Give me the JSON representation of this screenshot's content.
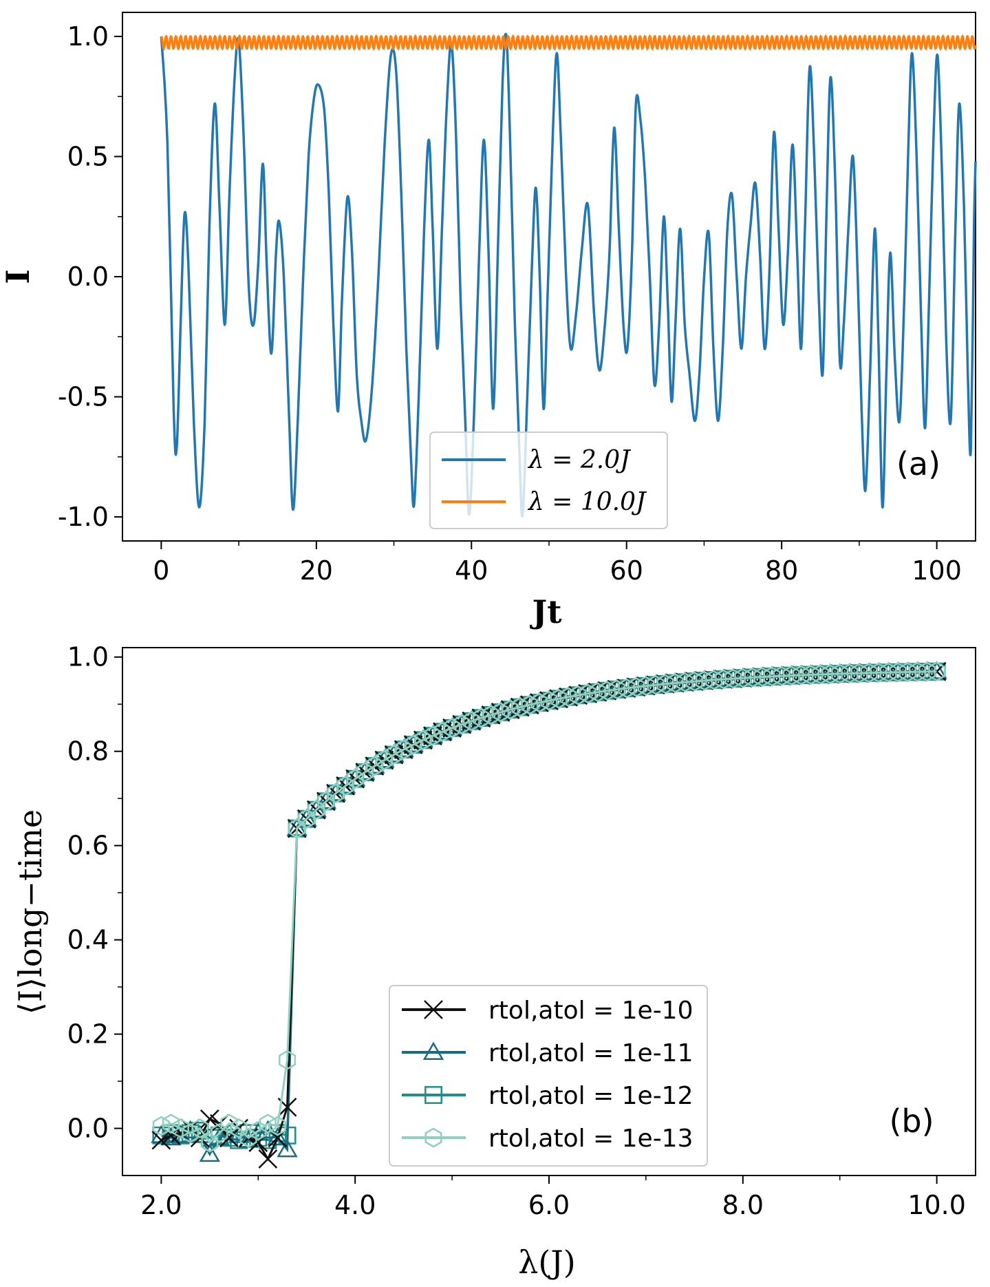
{
  "chart_data": [
    {
      "panel_label": "(a)",
      "type": "line",
      "xlabel": "Jt",
      "ylabel": "I",
      "xlim": [
        -5,
        105
      ],
      "ylim": [
        -1.1,
        1.1
      ],
      "xticks": [
        0,
        20,
        40,
        60,
        80,
        100
      ],
      "xtick_labels": [
        "0",
        "20",
        "40",
        "60",
        "80",
        "100"
      ],
      "yticks": [
        1.0,
        0.5,
        0.0,
        -0.5,
        -1.0
      ],
      "ytick_labels": [
        "1.0",
        "0.5",
        "0.0",
        "-0.5",
        "-1.0"
      ],
      "legend_position": "lower-center",
      "series": [
        {
          "name": "λ = 2.0J",
          "color": "#1f77b4",
          "points": [
            [
              0,
              1.0
            ],
            [
              0.8,
              0.55
            ],
            [
              1.6,
              -0.55
            ],
            [
              2.0,
              -0.71
            ],
            [
              2.5,
              -0.2
            ],
            [
              3.0,
              0.26
            ],
            [
              3.5,
              0.05
            ],
            [
              4.2,
              -0.6
            ],
            [
              4.9,
              -0.96
            ],
            [
              5.6,
              -0.6
            ],
            [
              6.2,
              0.2
            ],
            [
              6.9,
              0.72
            ],
            [
              7.5,
              0.3
            ],
            [
              8.2,
              -0.2
            ],
            [
              8.8,
              0.35
            ],
            [
              9.5,
              0.85
            ],
            [
              10.0,
              0.98
            ],
            [
              10.6,
              0.6
            ],
            [
              11.3,
              -0.05
            ],
            [
              11.9,
              -0.2
            ],
            [
              12.5,
              0.05
            ],
            [
              13.1,
              0.47
            ],
            [
              13.6,
              0.05
            ],
            [
              14.2,
              -0.32
            ],
            [
              14.8,
              0.1
            ],
            [
              15.2,
              0.23
            ],
            [
              15.8,
              0.0
            ],
            [
              16.5,
              -0.6
            ],
            [
              17.0,
              -0.97
            ],
            [
              17.6,
              -0.6
            ],
            [
              18.3,
              0.0
            ],
            [
              19.0,
              0.5
            ],
            [
              19.6,
              0.72
            ],
            [
              20.2,
              0.8
            ],
            [
              21.0,
              0.7
            ],
            [
              21.6,
              0.35
            ],
            [
              22.2,
              -0.2
            ],
            [
              22.8,
              -0.56
            ],
            [
              23.3,
              -0.1
            ],
            [
              24.0,
              0.33
            ],
            [
              24.6,
              0.1
            ],
            [
              25.2,
              -0.4
            ],
            [
              25.8,
              -0.6
            ],
            [
              26.4,
              -0.68
            ],
            [
              27.2,
              -0.45
            ],
            [
              28.0,
              0.0
            ],
            [
              28.8,
              0.55
            ],
            [
              29.6,
              0.92
            ],
            [
              30.3,
              0.85
            ],
            [
              31.0,
              0.3
            ],
            [
              31.6,
              -0.3
            ],
            [
              32.2,
              -0.75
            ],
            [
              32.6,
              -0.95
            ],
            [
              33.2,
              -0.5
            ],
            [
              33.9,
              0.2
            ],
            [
              34.5,
              0.57
            ],
            [
              35.0,
              0.2
            ],
            [
              35.6,
              -0.3
            ],
            [
              36.2,
              0.2
            ],
            [
              36.8,
              0.7
            ],
            [
              37.4,
              0.97
            ],
            [
              38.0,
              0.6
            ],
            [
              38.6,
              -0.1
            ],
            [
              39.2,
              -0.6
            ],
            [
              39.7,
              -0.99
            ],
            [
              40.3,
              -0.6
            ],
            [
              41.0,
              0.1
            ],
            [
              41.6,
              0.57
            ],
            [
              42.2,
              0.1
            ],
            [
              42.8,
              -0.55
            ],
            [
              43.4,
              0.1
            ],
            [
              44.0,
              0.8
            ],
            [
              44.5,
              1.0
            ],
            [
              45.0,
              0.55
            ],
            [
              45.6,
              -0.2
            ],
            [
              46.2,
              -0.75
            ],
            [
              46.6,
              -0.99
            ],
            [
              47.2,
              -0.5
            ],
            [
              47.8,
              0.05
            ],
            [
              48.3,
              0.37
            ],
            [
              48.8,
              0.0
            ],
            [
              49.3,
              -0.55
            ],
            [
              49.8,
              -0.1
            ],
            [
              50.5,
              0.6
            ],
            [
              51.0,
              0.93
            ],
            [
              51.5,
              0.6
            ],
            [
              52.2,
              0.0
            ],
            [
              52.8,
              -0.3
            ],
            [
              53.5,
              -0.15
            ],
            [
              54.2,
              0.1
            ],
            [
              55.0,
              0.3
            ],
            [
              55.8,
              -0.15
            ],
            [
              56.5,
              -0.39
            ],
            [
              57.2,
              -0.2
            ],
            [
              57.8,
              0.1
            ],
            [
              58.4,
              0.62
            ],
            [
              59.0,
              0.2
            ],
            [
              59.6,
              -0.2
            ],
            [
              60.1,
              -0.3
            ],
            [
              60.7,
              0.1
            ],
            [
              61.2,
              0.72
            ],
            [
              61.8,
              0.65
            ],
            [
              62.4,
              0.4
            ],
            [
              63.0,
              0.0
            ],
            [
              63.6,
              -0.45
            ],
            [
              64.2,
              -0.2
            ],
            [
              64.8,
              0.25
            ],
            [
              65.3,
              -0.1
            ],
            [
              65.8,
              -0.52
            ],
            [
              66.3,
              -0.2
            ],
            [
              66.9,
              0.2
            ],
            [
              67.5,
              -0.2
            ],
            [
              68.1,
              -0.4
            ],
            [
              68.8,
              -0.6
            ],
            [
              69.4,
              -0.4
            ],
            [
              70.0,
              0.0
            ],
            [
              70.6,
              0.18
            ],
            [
              71.2,
              -0.3
            ],
            [
              71.8,
              -0.6
            ],
            [
              72.4,
              -0.3
            ],
            [
              73.0,
              0.2
            ],
            [
              73.6,
              0.34
            ],
            [
              74.2,
              0.0
            ],
            [
              74.8,
              -0.3
            ],
            [
              75.4,
              0.0
            ],
            [
              76.0,
              0.22
            ],
            [
              76.6,
              0.39
            ],
            [
              77.2,
              0.1
            ],
            [
              77.8,
              -0.3
            ],
            [
              78.4,
              0.0
            ],
            [
              79.0,
              0.6
            ],
            [
              79.6,
              0.2
            ],
            [
              80.2,
              -0.2
            ],
            [
              80.8,
              0.1
            ],
            [
              81.4,
              0.55
            ],
            [
              82.0,
              0.1
            ],
            [
              82.5,
              -0.3
            ],
            [
              83.0,
              0.2
            ],
            [
              83.6,
              0.87
            ],
            [
              84.2,
              0.5
            ],
            [
              84.8,
              -0.1
            ],
            [
              85.3,
              -0.4
            ],
            [
              85.8,
              0.3
            ],
            [
              86.3,
              0.83
            ],
            [
              86.9,
              0.4
            ],
            [
              87.5,
              -0.35
            ],
            [
              88.0,
              -0.2
            ],
            [
              88.6,
              0.2
            ],
            [
              89.2,
              0.5
            ],
            [
              89.8,
              0.0
            ],
            [
              90.3,
              -0.55
            ],
            [
              90.8,
              -0.89
            ],
            [
              91.4,
              -0.4
            ],
            [
              92.0,
              0.2
            ],
            [
              92.5,
              -0.3
            ],
            [
              93.0,
              -0.96
            ],
            [
              93.5,
              -0.4
            ],
            [
              94.0,
              0.1
            ],
            [
              94.6,
              -0.35
            ],
            [
              95.2,
              -0.6
            ],
            [
              95.8,
              -0.1
            ],
            [
              96.3,
              0.5
            ],
            [
              96.8,
              0.93
            ],
            [
              97.4,
              0.5
            ],
            [
              98.0,
              -0.2
            ],
            [
              98.5,
              -0.63
            ],
            [
              99.0,
              -0.1
            ],
            [
              99.6,
              0.6
            ],
            [
              100.1,
              0.92
            ],
            [
              100.7,
              0.4
            ],
            [
              101.2,
              -0.25
            ],
            [
              101.8,
              -0.6
            ],
            [
              102.4,
              0.2
            ],
            [
              102.9,
              0.72
            ],
            [
              103.5,
              0.3
            ],
            [
              104.0,
              -0.4
            ],
            [
              104.4,
              -0.72
            ],
            [
              104.8,
              0.2
            ],
            [
              105.0,
              0.48
            ]
          ]
        },
        {
          "name": "λ = 10.0J",
          "color": "#ff7f0e",
          "y_max": 1.0,
          "y_min": 0.95,
          "oscillation_period": 0.63,
          "x_range": [
            0,
            105
          ]
        }
      ]
    },
    {
      "panel_label": "(b)",
      "type": "line",
      "xlabel": "λ(J)",
      "ylabel": "⟨I⟩long−time",
      "xlim": [
        1.6,
        10.4
      ],
      "ylim": [
        -0.1,
        1.02
      ],
      "xticks": [
        2.0,
        4.0,
        6.0,
        8.0,
        10.0
      ],
      "xtick_labels": [
        "2.0",
        "4.0",
        "6.0",
        "8.0",
        "10.0"
      ],
      "yticks": [
        1.0,
        0.8,
        0.6,
        0.4,
        0.2,
        0.0
      ],
      "ytick_labels": [
        "1.0",
        "0.8",
        "0.6",
        "0.4",
        "0.2",
        "0.0"
      ],
      "legend_position": "lower-center",
      "transition": {
        "lambda_c": 3.35,
        "plateau_start": 0.63,
        "saturation": 0.975,
        "growth_rate": 0.62,
        "step": 0.1
      },
      "series": [
        {
          "name": "rtol,atol = 1e-10",
          "color": "#111111",
          "marker": "x",
          "low_x": [
            2.0,
            2.1,
            2.2,
            2.3,
            2.4,
            2.5,
            2.6,
            2.7,
            2.8,
            2.9,
            3.0,
            3.1,
            3.2,
            3.3
          ],
          "low_y": [
            -0.025,
            -0.015,
            -0.01,
            0.0,
            -0.02,
            0.02,
            0.01,
            -0.02,
            0.0,
            -0.02,
            -0.03,
            -0.065,
            -0.02,
            0.045
          ]
        },
        {
          "name": "rtol,atol = 1e-11",
          "color": "#1a6b80",
          "marker": "triangle",
          "low_x": [
            2.0,
            2.1,
            2.2,
            2.3,
            2.4,
            2.5,
            2.6,
            2.7,
            2.8,
            2.9,
            3.0,
            3.1,
            3.2,
            3.3
          ],
          "low_y": [
            -0.015,
            -0.02,
            -0.015,
            -0.005,
            -0.015,
            -0.055,
            -0.02,
            -0.01,
            -0.015,
            -0.025,
            -0.01,
            -0.005,
            -0.02,
            -0.045
          ]
        },
        {
          "name": "rtol,atol = 1e-12",
          "color": "#1f8f8a",
          "marker": "square",
          "low_x": [
            2.0,
            2.1,
            2.2,
            2.3,
            2.4,
            2.5,
            2.6,
            2.7,
            2.8,
            2.9,
            3.0,
            3.1,
            3.2,
            3.3
          ],
          "low_y": [
            -0.015,
            -0.01,
            -0.015,
            -0.01,
            -0.005,
            -0.02,
            -0.015,
            -0.02,
            -0.025,
            -0.01,
            -0.02,
            -0.025,
            -0.01,
            -0.015
          ]
        },
        {
          "name": "rtol,atol = 1e-13",
          "color": "#8fd1bd",
          "marker": "hexagon",
          "low_x": [
            2.0,
            2.1,
            2.2,
            2.3,
            2.4,
            2.5,
            2.6,
            2.7,
            2.8,
            2.9,
            3.0,
            3.1,
            3.2,
            3.3
          ],
          "low_y": [
            0.005,
            0.01,
            0.0,
            -0.01,
            0.0,
            -0.03,
            -0.01,
            0.01,
            0.0,
            -0.02,
            -0.005,
            0.01,
            0.005,
            0.145
          ]
        }
      ]
    }
  ]
}
